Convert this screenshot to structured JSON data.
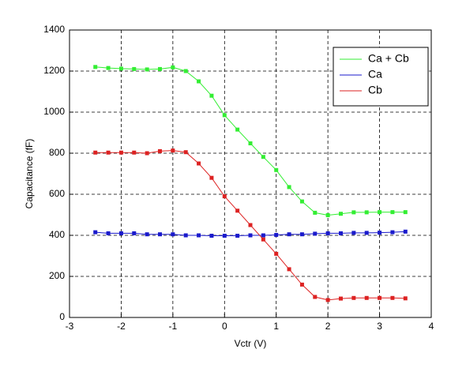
{
  "chart_data": {
    "type": "line",
    "x": [
      -2.5,
      -2.25,
      -2,
      -1.75,
      -1.5,
      -1.25,
      -1,
      -0.75,
      -0.5,
      -0.25,
      0,
      0.25,
      0.5,
      0.75,
      1,
      1.25,
      1.5,
      1.75,
      2,
      2.25,
      2.5,
      2.75,
      3,
      3.25,
      3.5
    ],
    "series": [
      {
        "name": "Ca + Cb",
        "color": "#33ee33",
        "values": [
          1220,
          1215,
          1212,
          1210,
          1208,
          1210,
          1218,
          1200,
          1150,
          1080,
          985,
          915,
          848,
          782,
          718,
          635,
          565,
          510,
          498,
          505,
          512,
          512,
          513,
          513,
          513
        ]
      },
      {
        "name": "Ca",
        "color": "#1a1acc",
        "values": [
          415,
          410,
          410,
          410,
          405,
          405,
          405,
          400,
          400,
          398,
          398,
          398,
          400,
          400,
          402,
          405,
          405,
          408,
          410,
          410,
          412,
          412,
          413,
          415,
          418
        ]
      },
      {
        "name": "Cb",
        "color": "#dd2222",
        "values": [
          803,
          803,
          803,
          803,
          800,
          810,
          813,
          805,
          750,
          680,
          590,
          520,
          450,
          380,
          310,
          235,
          160,
          100,
          85,
          92,
          95,
          95,
          95,
          95,
          93
        ]
      }
    ],
    "x_label": "Vctr (V)",
    "y_label": "Capacitance (fF)",
    "xlim": [
      -3,
      4
    ],
    "xticks": [
      -3,
      -2,
      -1,
      0,
      1,
      2,
      3,
      4
    ],
    "ylim": [
      0,
      1400
    ],
    "yticks": [
      0,
      200,
      400,
      600,
      800,
      1000,
      1200,
      1400
    ],
    "grid": true,
    "legend": "upper-right"
  }
}
